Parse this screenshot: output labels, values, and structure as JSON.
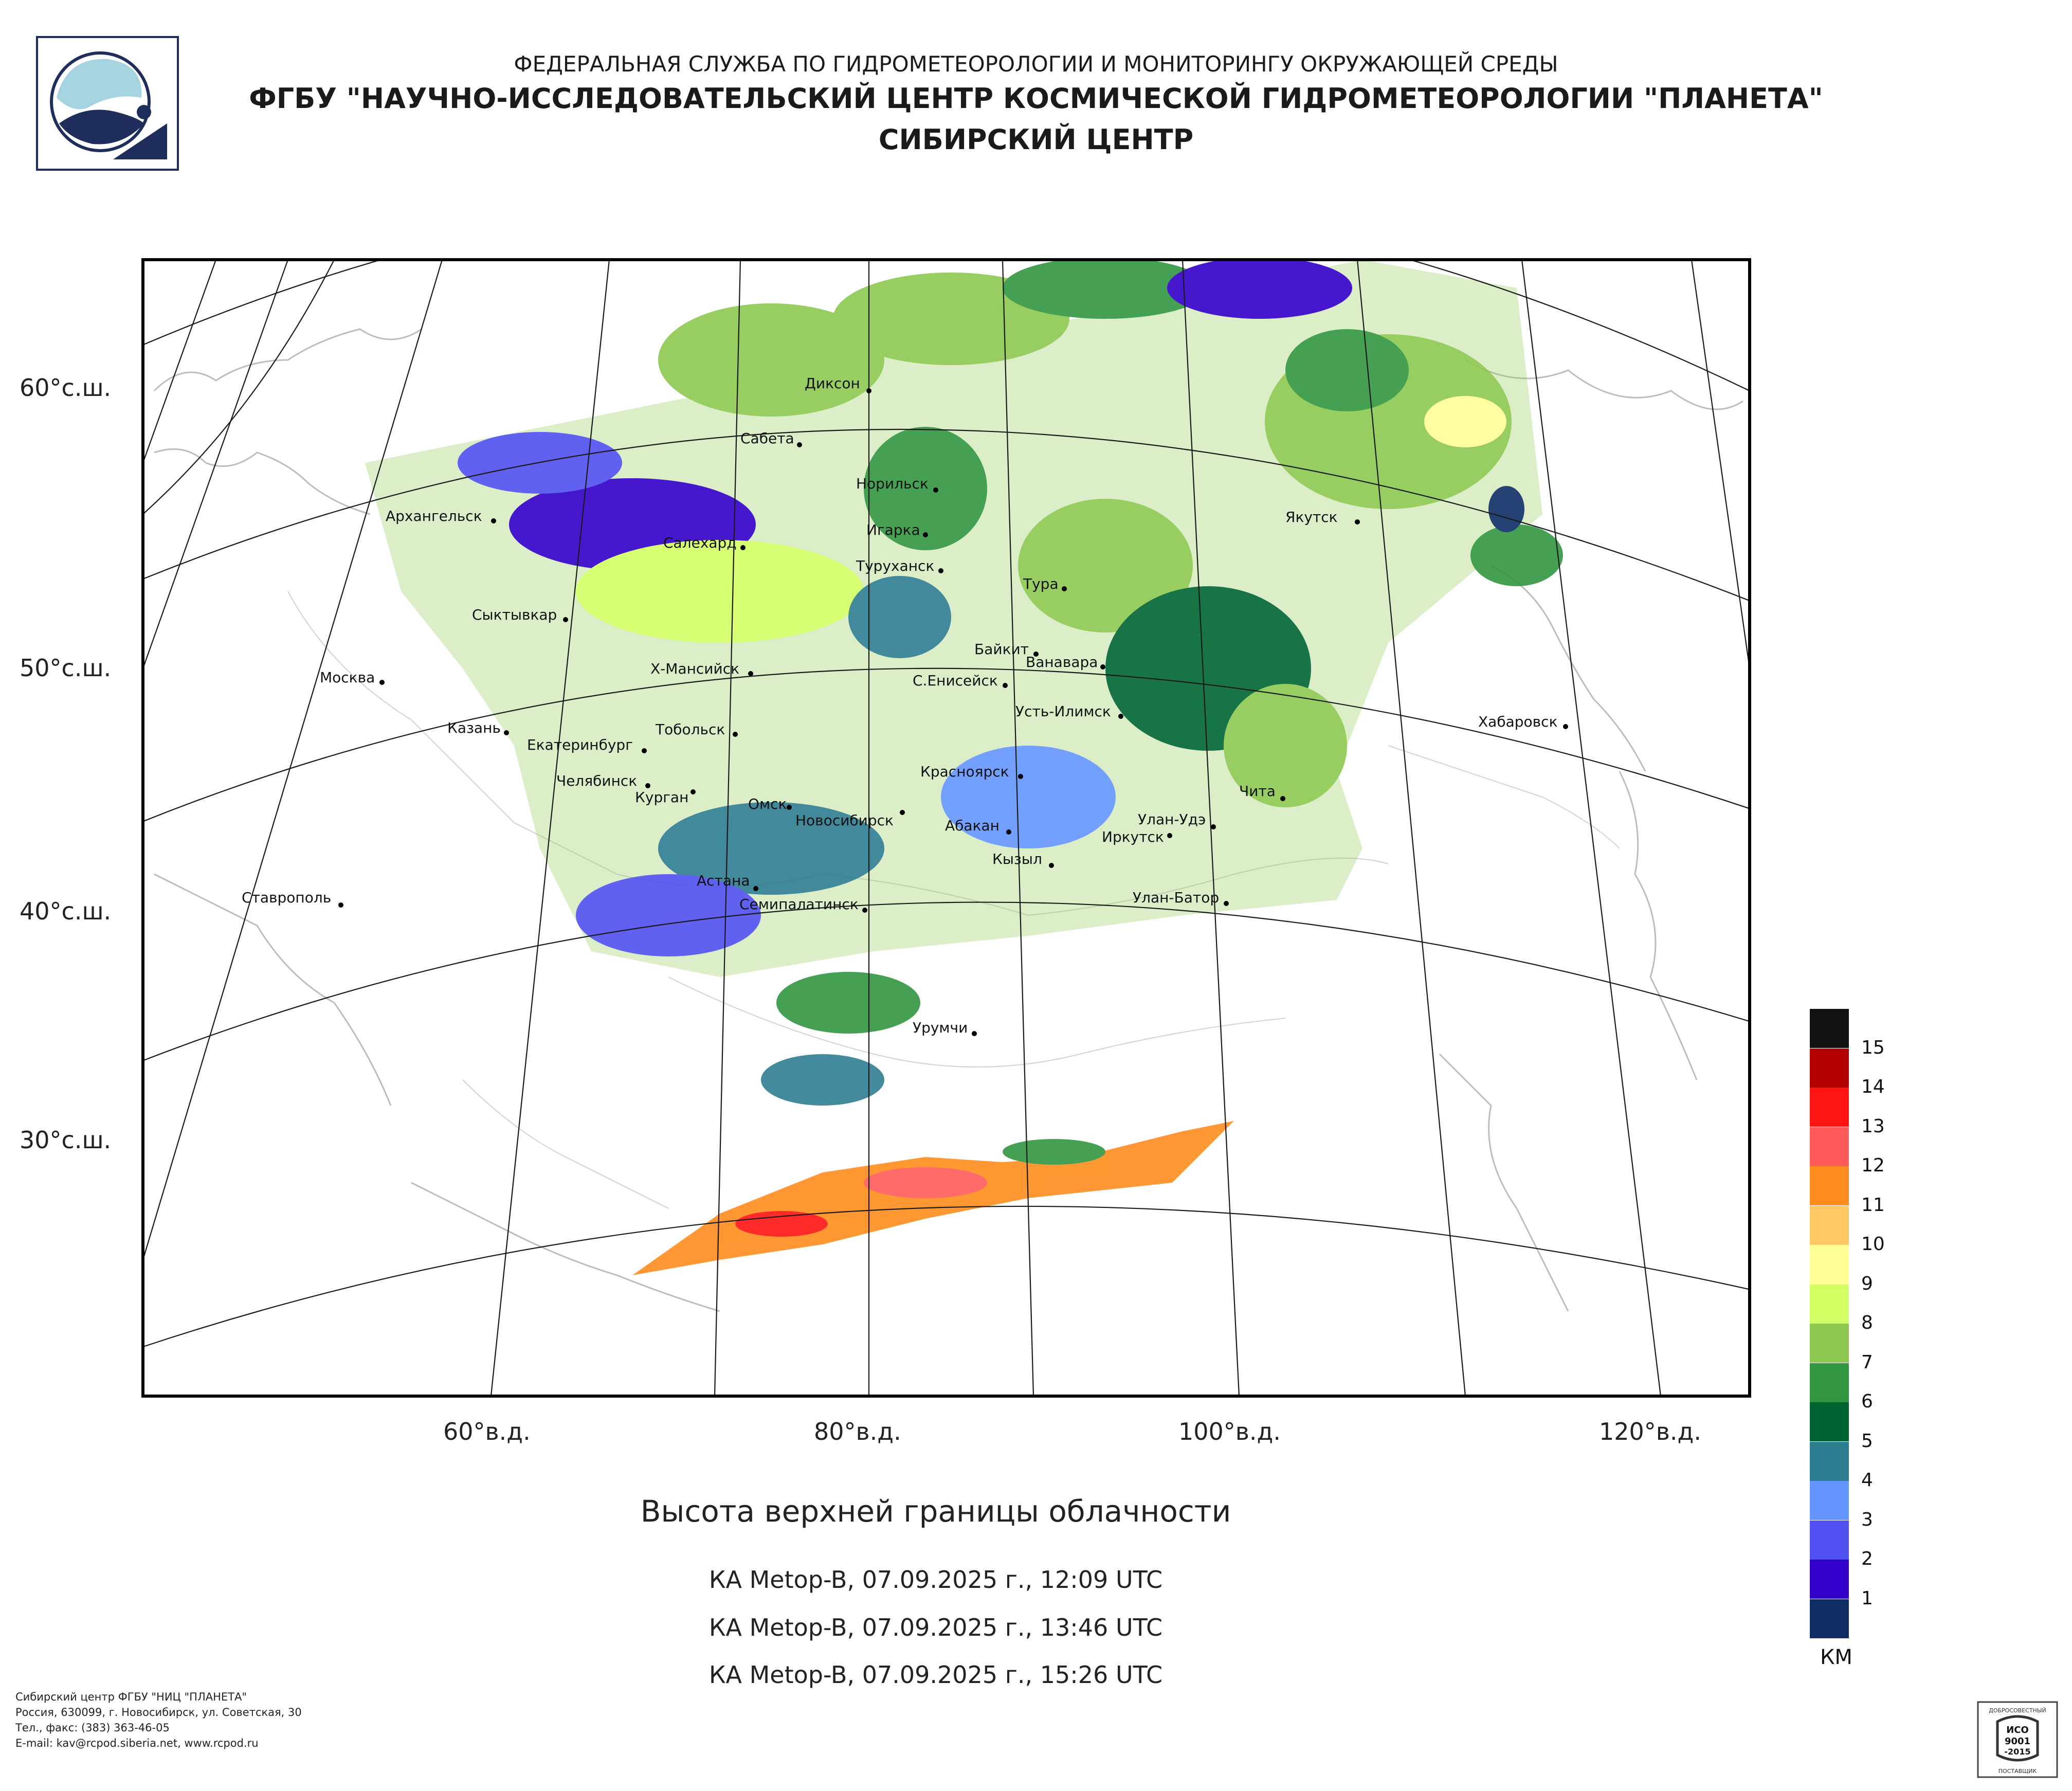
{
  "header": {
    "line1": "ФЕДЕРАЛЬНАЯ СЛУЖБА ПО ГИДРОМЕТЕОРОЛОГИИ И МОНИТОРИНГУ ОКРУЖАЮЩЕЙ СРЕДЫ",
    "line2": "ФГБУ \"НАУЧНО-ИССЛЕДОВАТЕЛЬСКИЙ ЦЕНТР КОСМИЧЕСКОЙ ГИДРОМЕТЕОРОЛОГИИ \"ПЛАНЕТА\"",
    "line3": "СИБИРСКИЙ ЦЕНТР"
  },
  "map": {
    "lat_labels": [
      "60°с.ш.",
      "50°с.ш.",
      "40°с.ш.",
      "30°с.ш."
    ],
    "lon_labels": [
      "60°в.д.",
      "80°в.д.",
      "100°в.д.",
      "120°в.д."
    ],
    "cities": [
      "Диксон",
      "Сабета",
      "Норильск",
      "Архангельск",
      "Салехард",
      "Игарка",
      "Туруханск",
      "Тура",
      "Якутск",
      "Сыктывкар",
      "Байкит",
      "Ванавара",
      "Москва",
      "Х-Мансийск",
      "С.Енисейск",
      "Усть-Илимск",
      "Казань",
      "Тобольск",
      "Екатеринбург",
      "Хабаровск",
      "Челябинск",
      "Красноярск",
      "Курган",
      "Чита",
      "Омск",
      "Новосибирск",
      "Абакан",
      "Улан-Удэ",
      "Иркутск",
      "Кызыл",
      "Астана",
      "Ставрополь",
      "Улан-Батор",
      "Семипалатинск",
      "Урумчи"
    ]
  },
  "title": "Высота верхней границы облачности",
  "passes": [
    "КА Metop-B, 07.09.2025 г., 12:09 UTC",
    "КА Metop-B, 07.09.2025 г., 13:46 UTC",
    "КА Metop-B, 07.09.2025 г., 15:26 UTC"
  ],
  "legend": {
    "units": "КМ",
    "levels": [
      {
        "label": "15",
        "color": "#111111"
      },
      {
        "label": "14",
        "color": "#b30000"
      },
      {
        "label": "13",
        "color": "#ff1414"
      },
      {
        "label": "12",
        "color": "#ff5a5a"
      },
      {
        "label": "11",
        "color": "#ff8c1e"
      },
      {
        "label": "10",
        "color": "#ffc864"
      },
      {
        "label": "9",
        "color": "#ffff96"
      },
      {
        "label": "8",
        "color": "#d2ff64"
      },
      {
        "label": "7",
        "color": "#8cc850"
      },
      {
        "label": "6",
        "color": "#329641"
      },
      {
        "label": "5",
        "color": "#006432"
      },
      {
        "label": "4",
        "color": "#2d7d91"
      },
      {
        "label": "3",
        "color": "#6496ff"
      },
      {
        "label": "2",
        "color": "#5050f0"
      },
      {
        "label": "1",
        "color": "#3200c8"
      },
      {
        "label": "",
        "color": "#0f2d64"
      }
    ]
  },
  "footer": {
    "line1": "Сибирский центр ФГБУ \"НИЦ \"ПЛАНЕТА\"",
    "line2": "Россия, 630099, г. Новосибирск, ул. Советская, 30",
    "line3": "Тел., факс: (383) 363-46-05",
    "line4": "E-mail: kav@rcpod.siberia.net, www.rcpod.ru"
  },
  "certificate": {
    "top": "ДОБРОСОВЕСТНЫЙ",
    "l1": "ИСО",
    "l2": "9001",
    "l3": "-2015",
    "bottom": "ПОСТАВЩИК"
  }
}
